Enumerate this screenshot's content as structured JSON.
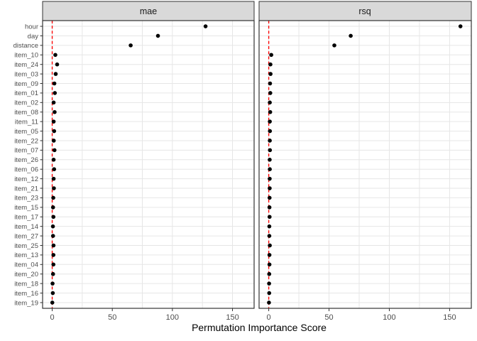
{
  "chart_data": {
    "type": "scatter",
    "title": "",
    "xlabel": "Permutation Importance Score",
    "ylabel": "",
    "facets": [
      "mae",
      "rsq"
    ],
    "categories": [
      "hour",
      "day",
      "distance",
      "item_10",
      "item_24",
      "item_03",
      "item_09",
      "item_01",
      "item_02",
      "item_08",
      "item_11",
      "item_05",
      "item_22",
      "item_07",
      "item_26",
      "item_06",
      "item_12",
      "item_21",
      "item_23",
      "item_15",
      "item_17",
      "item_14",
      "item_27",
      "item_25",
      "item_13",
      "item_04",
      "item_20",
      "item_18",
      "item_16",
      "item_19"
    ],
    "series": [
      {
        "name": "mae",
        "values": [
          127.6,
          88.0,
          65.3,
          2.6,
          4.1,
          2.9,
          1.8,
          2.2,
          1.2,
          2.0,
          1.2,
          1.6,
          1.3,
          1.9,
          1.2,
          1.6,
          1.2,
          1.4,
          0.9,
          0.7,
          1.0,
          0.6,
          0.7,
          1.1,
          1.0,
          1.0,
          0.7,
          0.3,
          0.5,
          0.1
        ]
      },
      {
        "name": "rsq",
        "values": [
          159.0,
          68.0,
          54.4,
          2.1,
          1.4,
          1.5,
          1.1,
          1.3,
          0.9,
          1.2,
          0.9,
          1.0,
          0.9,
          1.0,
          0.8,
          0.9,
          0.8,
          0.8,
          0.7,
          0.6,
          0.7,
          0.5,
          0.5,
          0.9,
          0.6,
          0.6,
          0.4,
          0.3,
          0.4,
          0.2
        ]
      }
    ],
    "x_tick_labels": [
      "0",
      "50",
      "100",
      "150"
    ],
    "x_ticks": [
      0,
      50,
      100,
      150
    ],
    "x_gridlines": [
      0,
      25,
      50,
      75,
      100,
      125,
      150
    ],
    "xlim": [
      -8,
      168
    ],
    "grid": "on",
    "legend_position": "none",
    "reference_line": {
      "x": 0,
      "style": "dashed",
      "color": "#FF0000"
    },
    "point_color": "#000000"
  },
  "style": {
    "grid_color": "#E6E6E6",
    "panel_border_color": "#333333",
    "strip_bg_color": "#D9D9D9",
    "strip_border_color": "#333333",
    "strip_text_color": "#1A1A1A",
    "tick_mark_color": "#333333",
    "tick_label_color": "#4D4D4D",
    "axis_title_color": "#000000",
    "background_color": "#FFFFFF"
  }
}
